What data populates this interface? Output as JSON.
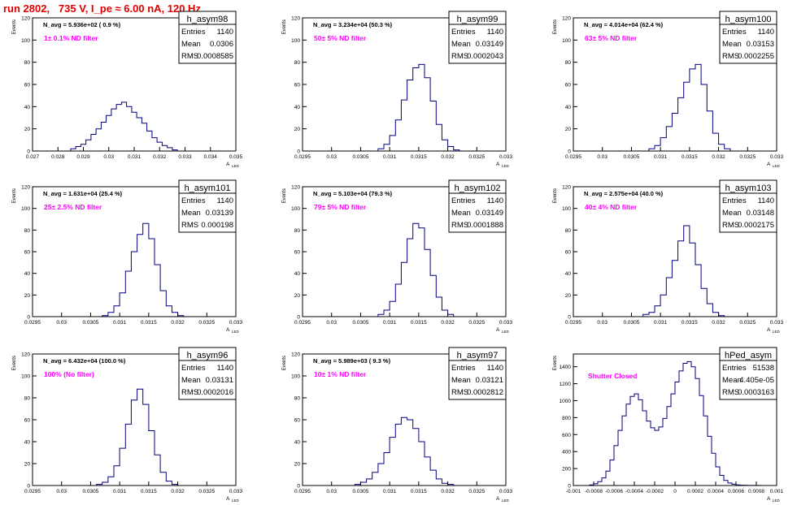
{
  "page_title": "run 2802,   735 V, I_pe ≈ 6.00 nA, 120 Hz",
  "stats_labels": {
    "entries": "Entries",
    "mean": "Mean",
    "rms": "RMS"
  },
  "colors": {
    "histogram": "#000080",
    "annotation": "#ff00ff",
    "title": "#e00000",
    "axis": "#000000"
  },
  "chart_data": [
    {
      "type": "bar",
      "name": "h_asym98",
      "navg": "N_avg = 5.936e+02 ( 0.9 %)",
      "filter": "1± 0.1% ND filter",
      "ylabel": "Events",
      "xlabel": "A",
      "xlabel_sub": "LED",
      "entries": "1140",
      "mean": "0.0306",
      "rms": "0.0008585",
      "xlim": [
        0.027,
        0.035
      ],
      "ylim": [
        0,
        120
      ],
      "xticks": [
        0.027,
        0.028,
        0.029,
        0.03,
        0.031,
        0.032,
        0.033,
        0.034,
        0.035
      ],
      "xtick_labels": [
        "0.027",
        "0.028",
        "0.029",
        "0.03",
        "0.031",
        "0.032",
        "0.033",
        "0.034",
        "0.035"
      ],
      "yticks": [
        0,
        20,
        40,
        60,
        80,
        100,
        120
      ],
      "centers": [
        0.0286,
        0.0288,
        0.029,
        0.0292,
        0.0294,
        0.0296,
        0.0298,
        0.03,
        0.0302,
        0.0304,
        0.0306,
        0.0308,
        0.031,
        0.0312,
        0.0314,
        0.0316,
        0.0318,
        0.032,
        0.0322,
        0.0324,
        0.0326
      ],
      "counts": [
        2,
        4,
        6,
        10,
        15,
        20,
        26,
        32,
        38,
        42,
        44,
        40,
        35,
        30,
        25,
        18,
        12,
        8,
        5,
        3,
        1
      ]
    },
    {
      "type": "bar",
      "name": "h_asym99",
      "navg": "N_avg = 3.234e+04 (50.3 %)",
      "filter": "50± 5% ND filter",
      "ylabel": "Events",
      "xlabel": "A",
      "xlabel_sub": "LED",
      "entries": "1140",
      "mean": "0.03149",
      "rms": "0.0002043",
      "xlim": [
        0.0295,
        0.033
      ],
      "ylim": [
        0,
        120
      ],
      "xticks": [
        0.0295,
        0.03,
        0.0305,
        0.031,
        0.0315,
        0.032,
        0.0325,
        0.033
      ],
      "xtick_labels": [
        "0.0295",
        "0.03",
        "0.0305",
        "0.031",
        "0.0315",
        "0.032",
        "0.0325",
        "0.033"
      ],
      "yticks": [
        0,
        20,
        40,
        60,
        80,
        100,
        120
      ],
      "centers": [
        0.03085,
        0.03095,
        0.03105,
        0.03115,
        0.03125,
        0.03135,
        0.03145,
        0.03155,
        0.03165,
        0.03175,
        0.03185,
        0.03195,
        0.03205,
        0.03215
      ],
      "counts": [
        2,
        6,
        14,
        28,
        46,
        64,
        75,
        78,
        66,
        45,
        24,
        10,
        4,
        1
      ]
    },
    {
      "type": "bar",
      "name": "h_asym100",
      "navg": "N_avg = 4.014e+04 (62.4 %)",
      "filter": "63± 5% ND filter",
      "ylabel": "Events",
      "xlabel": "A",
      "xlabel_sub": "LED",
      "entries": "1140",
      "mean": "0.03153",
      "rms": "0.0002255",
      "xlim": [
        0.0295,
        0.033
      ],
      "ylim": [
        0,
        120
      ],
      "xticks": [
        0.0295,
        0.03,
        0.0305,
        0.031,
        0.0315,
        0.032,
        0.0325,
        0.033
      ],
      "xtick_labels": [
        "0.0295",
        "0.03",
        "0.0305",
        "0.031",
        "0.0315",
        "0.032",
        "0.0325",
        "0.033"
      ],
      "yticks": [
        0,
        20,
        40,
        60,
        80,
        100,
        120
      ],
      "centers": [
        0.03085,
        0.03095,
        0.03105,
        0.03115,
        0.03125,
        0.03135,
        0.03145,
        0.03155,
        0.03165,
        0.03175,
        0.03185,
        0.03195,
        0.03205,
        0.03215
      ],
      "counts": [
        2,
        5,
        12,
        22,
        34,
        48,
        62,
        74,
        78,
        60,
        36,
        16,
        6,
        2
      ]
    },
    {
      "type": "bar",
      "name": "h_asym101",
      "navg": "N_avg = 1.631e+04 (25.4 %)",
      "filter": "25± 2.5% ND filter",
      "ylabel": "Events",
      "xlabel": "A",
      "xlabel_sub": "LED",
      "entries": "1140",
      "mean": "0.03139",
      "rms": "0.000198",
      "xlim": [
        0.0295,
        0.033
      ],
      "ylim": [
        0,
        120
      ],
      "xticks": [
        0.0295,
        0.03,
        0.0305,
        0.031,
        0.0315,
        0.032,
        0.0325,
        0.033
      ],
      "xtick_labels": [
        "0.0295",
        "0.03",
        "0.0305",
        "0.031",
        "0.0315",
        "0.032",
        "0.0325",
        "0.033"
      ],
      "yticks": [
        0,
        20,
        40,
        60,
        80,
        100,
        120
      ],
      "centers": [
        0.03075,
        0.03085,
        0.03095,
        0.03105,
        0.03115,
        0.03125,
        0.03135,
        0.03145,
        0.03155,
        0.03165,
        0.03175,
        0.03185,
        0.03195,
        0.03205
      ],
      "counts": [
        1,
        4,
        10,
        22,
        42,
        60,
        76,
        86,
        72,
        48,
        24,
        10,
        4,
        1
      ]
    },
    {
      "type": "bar",
      "name": "h_asym102",
      "navg": "N_avg = 5.103e+04 (79.3 %)",
      "filter": "79± 5% ND filter",
      "ylabel": "Events",
      "xlabel": "A",
      "xlabel_sub": "LED",
      "entries": "1140",
      "mean": "0.03149",
      "rms": "0.0001888",
      "xlim": [
        0.0295,
        0.033
      ],
      "ylim": [
        0,
        120
      ],
      "xticks": [
        0.0295,
        0.03,
        0.0305,
        0.031,
        0.0315,
        0.032,
        0.0325,
        0.033
      ],
      "xtick_labels": [
        "0.0295",
        "0.03",
        "0.0305",
        "0.031",
        "0.0315",
        "0.032",
        "0.0325",
        "0.033"
      ],
      "yticks": [
        0,
        20,
        40,
        60,
        80,
        100,
        120
      ],
      "centers": [
        0.03085,
        0.03095,
        0.03105,
        0.03115,
        0.03125,
        0.03135,
        0.03145,
        0.03155,
        0.03165,
        0.03175,
        0.03185,
        0.03195,
        0.03205
      ],
      "counts": [
        2,
        6,
        14,
        30,
        50,
        72,
        86,
        82,
        62,
        38,
        18,
        6,
        2
      ]
    },
    {
      "type": "bar",
      "name": "h_asym103",
      "navg": "N_avg = 2.575e+04 (40.0 %)",
      "filter": "40± 4% ND filter",
      "ylabel": "Events",
      "xlabel": "A",
      "xlabel_sub": "LED",
      "entries": "1140",
      "mean": "0.03148",
      "rms": "0.0002175",
      "xlim": [
        0.0295,
        0.033
      ],
      "ylim": [
        0,
        120
      ],
      "xticks": [
        0.0295,
        0.03,
        0.0305,
        0.031,
        0.0315,
        0.032,
        0.0325,
        0.033
      ],
      "xtick_labels": [
        "0.0295",
        "0.03",
        "0.0305",
        "0.031",
        "0.0315",
        "0.032",
        "0.0325",
        "0.033"
      ],
      "yticks": [
        0,
        20,
        40,
        60,
        80,
        100,
        120
      ],
      "centers": [
        0.03075,
        0.03085,
        0.03095,
        0.03105,
        0.03115,
        0.03125,
        0.03135,
        0.03145,
        0.03155,
        0.03165,
        0.03175,
        0.03185,
        0.03195,
        0.03205
      ],
      "counts": [
        2,
        4,
        10,
        20,
        36,
        52,
        70,
        84,
        68,
        48,
        26,
        12,
        4,
        1
      ]
    },
    {
      "type": "bar",
      "name": "h_asym96",
      "navg": "N_avg = 6.432e+04 (100.0 %)",
      "filter": "100% (No filter)",
      "ylabel": "Events",
      "xlabel": "A",
      "xlabel_sub": "LED",
      "entries": "1140",
      "mean": "0.03131",
      "rms": "0.0002016",
      "xlim": [
        0.0295,
        0.033
      ],
      "ylim": [
        0,
        120
      ],
      "xticks": [
        0.0295,
        0.03,
        0.0305,
        0.031,
        0.0315,
        0.032,
        0.0325,
        0.033
      ],
      "xtick_labels": [
        "0.0295",
        "0.03",
        "0.0305",
        "0.031",
        "0.0315",
        "0.032",
        "0.0325",
        "0.033"
      ],
      "yticks": [
        0,
        20,
        40,
        60,
        80,
        100,
        120
      ],
      "centers": [
        0.03065,
        0.03075,
        0.03085,
        0.03095,
        0.03105,
        0.03115,
        0.03125,
        0.03135,
        0.03145,
        0.03155,
        0.03165,
        0.03175,
        0.03185,
        0.03195
      ],
      "counts": [
        1,
        3,
        8,
        18,
        34,
        56,
        78,
        88,
        74,
        50,
        28,
        12,
        4,
        1
      ]
    },
    {
      "type": "bar",
      "name": "h_asym97",
      "navg": "N_avg = 5.989e+03 ( 9.3 %)",
      "filter": "10± 1% ND filter",
      "ylabel": "Events",
      "xlabel": "A",
      "xlabel_sub": "LED",
      "entries": "1140",
      "mean": "0.03121",
      "rms": "0.0002812",
      "xlim": [
        0.0295,
        0.033
      ],
      "ylim": [
        0,
        120
      ],
      "xticks": [
        0.0295,
        0.03,
        0.0305,
        0.031,
        0.0315,
        0.032,
        0.0325,
        0.033
      ],
      "xtick_labels": [
        "0.0295",
        "0.03",
        "0.0305",
        "0.031",
        "0.0315",
        "0.032",
        "0.0325",
        "0.033"
      ],
      "yticks": [
        0,
        20,
        40,
        60,
        80,
        100,
        120
      ],
      "centers": [
        0.03045,
        0.03055,
        0.03065,
        0.03075,
        0.03085,
        0.03095,
        0.03105,
        0.03115,
        0.03125,
        0.03135,
        0.03145,
        0.03155,
        0.03165,
        0.03175,
        0.03185,
        0.03195,
        0.03205
      ],
      "counts": [
        1,
        3,
        6,
        12,
        20,
        30,
        44,
        56,
        62,
        60,
        52,
        40,
        26,
        14,
        6,
        2,
        1
      ]
    },
    {
      "type": "bar",
      "name": "hPed_asym",
      "navg": "",
      "filter": "Shutter Closed",
      "ylabel": "Events",
      "xlabel": "A",
      "xlabel_sub": "LED",
      "entries": "51538",
      "mean": "4.405e-05",
      "rms": "0.0003163",
      "xlim": [
        -0.001,
        0.001
      ],
      "ylim": [
        0,
        1550
      ],
      "xticks": [
        -0.001,
        -0.0008,
        -0.0006,
        -0.0004,
        -0.0002,
        0,
        0.0002,
        0.0004,
        0.0006,
        0.0008,
        0.001
      ],
      "xtick_labels": [
        "-0.001",
        "-0.0008",
        "-0.0006",
        "-0.0004",
        "-0.0002",
        "0",
        "0.0002",
        "0.0004",
        "0.0006",
        "0.0008",
        "0.001"
      ],
      "yticks": [
        0,
        200,
        400,
        600,
        800,
        1000,
        1200,
        1400
      ],
      "centers": [
        -0.00082,
        -0.00078,
        -0.00074,
        -0.0007,
        -0.00066,
        -0.00062,
        -0.00058,
        -0.00054,
        -0.0005,
        -0.00046,
        -0.00042,
        -0.00038,
        -0.00034,
        -0.0003,
        -0.00026,
        -0.00022,
        -0.00018,
        -0.00014,
        -0.0001,
        -6e-05,
        -2e-05,
        2e-05,
        6e-05,
        0.0001,
        0.00014,
        0.00018,
        0.00022,
        0.00026,
        0.0003,
        0.00034,
        0.00038,
        0.00042,
        0.00046,
        0.0005,
        0.00054,
        0.00058,
        0.00062,
        0.00066,
        0.0007,
        0.00074,
        0.00078,
        0.00082
      ],
      "counts": [
        8,
        20,
        45,
        90,
        170,
        300,
        470,
        650,
        820,
        960,
        1050,
        1080,
        1010,
        880,
        760,
        680,
        650,
        690,
        790,
        930,
        1080,
        1220,
        1350,
        1440,
        1460,
        1400,
        1260,
        1060,
        820,
        580,
        380,
        220,
        120,
        60,
        30,
        15,
        8,
        4,
        2,
        1,
        1,
        1
      ]
    }
  ]
}
